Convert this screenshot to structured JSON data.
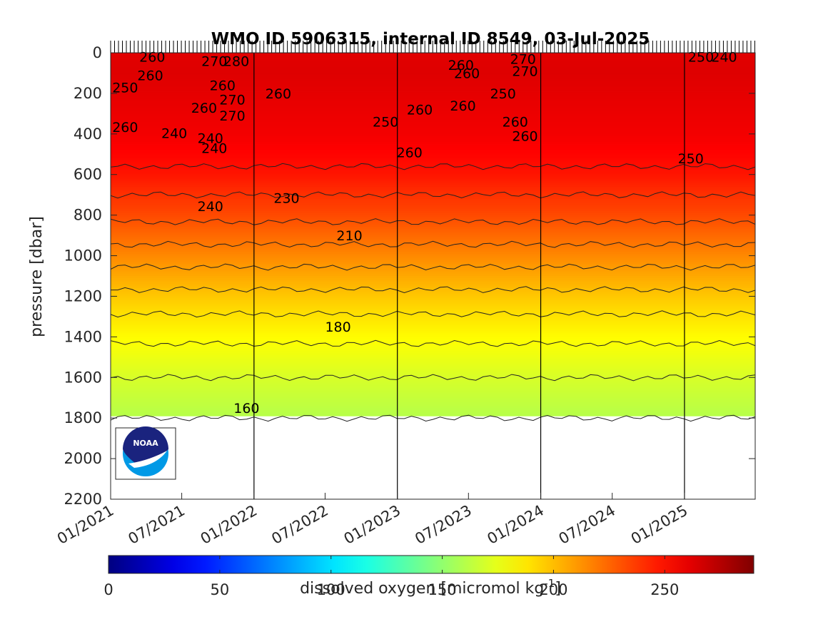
{
  "chart_data": {
    "type": "heatmap",
    "title": "WMO ID 5906315, internal ID 8549, 03-Jul-2025",
    "ylabel": "pressure [dbar]",
    "y_reversed": true,
    "ylim": [
      0,
      2200
    ],
    "yticks": [
      0,
      200,
      400,
      600,
      800,
      1000,
      1200,
      1400,
      1600,
      1800,
      2000,
      2200
    ],
    "xlim": [
      "2021-01-01",
      "2025-06-30"
    ],
    "xticks": [
      {
        "label": "01/2021",
        "date": "2021-01-01"
      },
      {
        "label": "07/2021",
        "date": "2021-07-01"
      },
      {
        "label": "01/2022",
        "date": "2022-01-01"
      },
      {
        "label": "07/2022",
        "date": "2022-07-01"
      },
      {
        "label": "01/2023",
        "date": "2023-01-01"
      },
      {
        "label": "07/2023",
        "date": "2023-07-01"
      },
      {
        "label": "01/2024",
        "date": "2024-01-01"
      },
      {
        "label": "07/2024",
        "date": "2024-07-01"
      },
      {
        "label": "01/2025",
        "date": "2025-01-01"
      }
    ],
    "year_lines": [
      "2022-01-01",
      "2023-01-01",
      "2024-01-01",
      "2025-01-01"
    ],
    "max_pressure": 1790,
    "colorbar": {
      "label": "dissolved oxygen [micromol kg",
      "label_exponent": "-1",
      "label_close": "]",
      "range": [
        0,
        290
      ],
      "ticks": [
        0,
        50,
        100,
        150,
        200,
        250
      ],
      "colormap": "jet"
    },
    "profile_levels": [
      {
        "p": 0,
        "o2": 262
      },
      {
        "p": 100,
        "o2": 263
      },
      {
        "p": 200,
        "o2": 261
      },
      {
        "p": 300,
        "o2": 259
      },
      {
        "p": 400,
        "o2": 257
      },
      {
        "p": 500,
        "o2": 253
      },
      {
        "p": 600,
        "o2": 248
      },
      {
        "p": 700,
        "o2": 240
      },
      {
        "p": 800,
        "o2": 233
      },
      {
        "p": 900,
        "o2": 224
      },
      {
        "p": 1000,
        "o2": 215
      },
      {
        "p": 1100,
        "o2": 206
      },
      {
        "p": 1200,
        "o2": 197
      },
      {
        "p": 1300,
        "o2": 189
      },
      {
        "p": 1400,
        "o2": 182
      },
      {
        "p": 1500,
        "o2": 176
      },
      {
        "p": 1600,
        "o2": 170
      },
      {
        "p": 1700,
        "o2": 165
      },
      {
        "p": 1800,
        "o2": 160
      }
    ],
    "contour_levels": [
      160,
      170,
      180,
      190,
      200,
      210,
      220,
      230,
      240,
      250
    ],
    "annotations": [
      {
        "text": "260",
        "date": "2021-03-15",
        "p": 20
      },
      {
        "text": "260",
        "date": "2021-03-10",
        "p": 110
      },
      {
        "text": "250",
        "date": "2021-01-05",
        "p": 170
      },
      {
        "text": "260",
        "date": "2021-01-05",
        "p": 365
      },
      {
        "text": "240",
        "date": "2021-05-10",
        "p": 395
      },
      {
        "text": "260",
        "date": "2021-07-25",
        "p": 270
      },
      {
        "text": "240",
        "date": "2021-08-10",
        "p": 420
      },
      {
        "text": "240",
        "date": "2021-08-20",
        "p": 470
      },
      {
        "text": "270",
        "date": "2021-08-20",
        "p": 40
      },
      {
        "text": "280",
        "date": "2021-10-15",
        "p": 40
      },
      {
        "text": "260",
        "date": "2021-09-10",
        "p": 160
      },
      {
        "text": "270",
        "date": "2021-10-05",
        "p": 230
      },
      {
        "text": "270",
        "date": "2021-10-05",
        "p": 310
      },
      {
        "text": "260",
        "date": "2022-01-30",
        "p": 200
      },
      {
        "text": "240",
        "date": "2021-08-10",
        "p": 755
      },
      {
        "text": "230",
        "date": "2022-02-20",
        "p": 715
      },
      {
        "text": "210",
        "date": "2022-07-30",
        "p": 900
      },
      {
        "text": "180",
        "date": "2022-07-01",
        "p": 1350
      },
      {
        "text": "160",
        "date": "2021-11-10",
        "p": 1750
      },
      {
        "text": "250",
        "date": "2022-10-30",
        "p": 340
      },
      {
        "text": "260",
        "date": "2023-01-25",
        "p": 280
      },
      {
        "text": "260",
        "date": "2023-05-10",
        "p": 60
      },
      {
        "text": "260",
        "date": "2023-05-25",
        "p": 100
      },
      {
        "text": "260",
        "date": "2023-05-15",
        "p": 260
      },
      {
        "text": "260",
        "date": "2022-12-30",
        "p": 490
      },
      {
        "text": "270",
        "date": "2023-10-15",
        "p": 30
      },
      {
        "text": "270",
        "date": "2023-10-20",
        "p": 90
      },
      {
        "text": "250",
        "date": "2023-08-25",
        "p": 200
      },
      {
        "text": "260",
        "date": "2023-09-25",
        "p": 340
      },
      {
        "text": "260",
        "date": "2023-10-20",
        "p": 410
      },
      {
        "text": "250",
        "date": "2025-01-10",
        "p": 20
      },
      {
        "text": "240",
        "date": "2025-03-10",
        "p": 20
      },
      {
        "text": "250",
        "date": "2024-12-15",
        "p": 520
      }
    ],
    "logo": {
      "text": "NOAA"
    }
  }
}
